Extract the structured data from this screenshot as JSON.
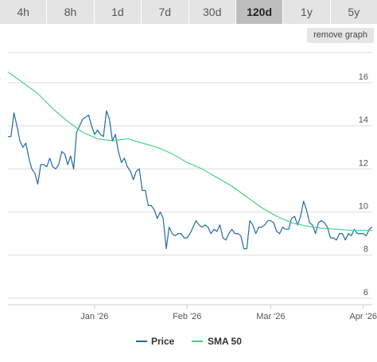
{
  "tabs": [
    {
      "label": "4h",
      "active": false
    },
    {
      "label": "8h",
      "active": false
    },
    {
      "label": "1d",
      "active": false
    },
    {
      "label": "7d",
      "active": false
    },
    {
      "label": "30d",
      "active": false
    },
    {
      "label": "120d",
      "active": true
    },
    {
      "label": "1y",
      "active": false
    },
    {
      "label": "5y",
      "active": false
    }
  ],
  "remove_graph_label": "remove graph",
  "colors": {
    "price": "#1f6aa5",
    "sma": "#3bd17a",
    "grid": "#dddddd"
  },
  "chart_data": {
    "type": "line",
    "title": "",
    "xlabel": "",
    "ylabel": "",
    "ylim": [
      5.7,
      17.4
    ],
    "xlim": [
      "2025-12-03",
      "2026-04-04"
    ],
    "yticks": [
      6,
      8,
      10,
      12,
      14,
      16
    ],
    "xticks": [
      {
        "date": "2026-01-01",
        "label": "Jan '26"
      },
      {
        "date": "2026-02-01",
        "label": "Feb '26"
      },
      {
        "date": "2026-03-01",
        "label": "Mar '26"
      },
      {
        "date": "2026-04-01",
        "label": "Apr '26"
      }
    ],
    "legend": {
      "position": "bottom",
      "entries": [
        "Price",
        "SMA 50"
      ]
    },
    "series": [
      {
        "name": "Price",
        "points": [
          [
            "2025-12-03",
            13.5
          ],
          [
            "2025-12-04",
            13.5
          ],
          [
            "2025-12-05",
            14.6
          ],
          [
            "2025-12-06",
            14.0
          ],
          [
            "2025-12-07",
            13.3
          ],
          [
            "2025-12-08",
            13.0
          ],
          [
            "2025-12-09",
            13.2
          ],
          [
            "2025-12-10",
            12.5
          ],
          [
            "2025-12-11",
            12.0
          ],
          [
            "2025-12-12",
            11.8
          ],
          [
            "2025-12-13",
            11.3
          ],
          [
            "2025-12-14",
            12.2
          ],
          [
            "2025-12-15",
            12.2
          ],
          [
            "2025-12-16",
            12.1
          ],
          [
            "2025-12-17",
            12.5
          ],
          [
            "2025-12-18",
            12.1
          ],
          [
            "2025-12-19",
            12.0
          ],
          [
            "2025-12-20",
            12.2
          ],
          [
            "2025-12-21",
            12.8
          ],
          [
            "2025-12-22",
            12.7
          ],
          [
            "2025-12-23",
            12.2
          ],
          [
            "2025-12-24",
            12.6
          ],
          [
            "2025-12-25",
            12.0
          ],
          [
            "2025-12-26",
            13.7
          ],
          [
            "2025-12-27",
            14.0
          ],
          [
            "2025-12-28",
            14.3
          ],
          [
            "2025-12-29",
            14.4
          ],
          [
            "2025-12-30",
            14.5
          ],
          [
            "2025-12-31",
            14.0
          ],
          [
            "2026-01-01",
            13.6
          ],
          [
            "2026-01-02",
            13.8
          ],
          [
            "2026-01-03",
            13.6
          ],
          [
            "2026-01-04",
            13.5
          ],
          [
            "2026-01-05",
            14.7
          ],
          [
            "2026-01-06",
            14.3
          ],
          [
            "2026-01-07",
            13.3
          ],
          [
            "2026-01-08",
            13.6
          ],
          [
            "2026-01-09",
            12.8
          ],
          [
            "2026-01-10",
            12.3
          ],
          [
            "2026-01-11",
            12.5
          ],
          [
            "2026-01-12",
            12.1
          ],
          [
            "2026-01-13",
            11.9
          ],
          [
            "2026-01-14",
            11.5
          ],
          [
            "2026-01-15",
            11.9
          ],
          [
            "2026-01-16",
            12.0
          ],
          [
            "2026-01-17",
            11.0
          ],
          [
            "2026-01-18",
            11.0
          ],
          [
            "2026-01-19",
            10.3
          ],
          [
            "2026-01-20",
            10.3
          ],
          [
            "2026-01-21",
            10.1
          ],
          [
            "2026-01-22",
            9.7
          ],
          [
            "2026-01-23",
            10.0
          ],
          [
            "2026-01-24",
            9.7
          ],
          [
            "2026-01-25",
            8.3
          ],
          [
            "2026-01-26",
            9.3
          ],
          [
            "2026-01-27",
            9.0
          ],
          [
            "2026-01-28",
            8.9
          ],
          [
            "2026-01-29",
            9.0
          ],
          [
            "2026-01-30",
            9.0
          ],
          [
            "2026-01-31",
            8.8
          ],
          [
            "2026-02-01",
            8.8
          ],
          [
            "2026-02-02",
            9.0
          ],
          [
            "2026-02-03",
            9.3
          ],
          [
            "2026-02-04",
            9.6
          ],
          [
            "2026-02-05",
            9.4
          ],
          [
            "2026-02-06",
            9.3
          ],
          [
            "2026-02-07",
            9.4
          ],
          [
            "2026-02-08",
            9.3
          ],
          [
            "2026-02-09",
            9.0
          ],
          [
            "2026-02-10",
            9.2
          ],
          [
            "2026-02-11",
            9.1
          ],
          [
            "2026-02-12",
            9.4
          ],
          [
            "2026-02-13",
            8.8
          ],
          [
            "2026-02-14",
            8.7
          ],
          [
            "2026-02-15",
            9.0
          ],
          [
            "2026-02-16",
            9.2
          ],
          [
            "2026-02-17",
            9.0
          ],
          [
            "2026-02-18",
            9.0
          ],
          [
            "2026-02-19",
            8.9
          ],
          [
            "2026-02-20",
            8.3
          ],
          [
            "2026-02-21",
            8.3
          ],
          [
            "2026-02-22",
            9.6
          ],
          [
            "2026-02-23",
            9.4
          ],
          [
            "2026-02-24",
            9.0
          ],
          [
            "2026-02-25",
            9.3
          ],
          [
            "2026-02-26",
            9.3
          ],
          [
            "2026-02-27",
            9.4
          ],
          [
            "2026-02-28",
            9.6
          ],
          [
            "2026-03-01",
            9.6
          ],
          [
            "2026-03-02",
            9.5
          ],
          [
            "2026-03-03",
            9.1
          ],
          [
            "2026-03-04",
            9.0
          ],
          [
            "2026-03-05",
            9.3
          ],
          [
            "2026-03-06",
            9.2
          ],
          [
            "2026-03-07",
            9.2
          ],
          [
            "2026-03-08",
            9.7
          ],
          [
            "2026-03-09",
            9.8
          ],
          [
            "2026-03-10",
            9.4
          ],
          [
            "2026-03-11",
            9.8
          ],
          [
            "2026-03-12",
            10.5
          ],
          [
            "2026-03-13",
            10.1
          ],
          [
            "2026-03-14",
            9.5
          ],
          [
            "2026-03-15",
            9.4
          ],
          [
            "2026-03-16",
            9.0
          ],
          [
            "2026-03-17",
            9.5
          ],
          [
            "2026-03-18",
            9.6
          ],
          [
            "2026-03-19",
            9.5
          ],
          [
            "2026-03-20",
            9.3
          ],
          [
            "2026-03-21",
            8.8
          ],
          [
            "2026-03-22",
            8.8
          ],
          [
            "2026-03-23",
            8.7
          ],
          [
            "2026-03-24",
            9.0
          ],
          [
            "2026-03-25",
            9.0
          ],
          [
            "2026-03-26",
            8.7
          ],
          [
            "2026-03-27",
            9.0
          ],
          [
            "2026-03-28",
            8.9
          ],
          [
            "2026-03-29",
            9.2
          ],
          [
            "2026-03-30",
            9.0
          ],
          [
            "2026-03-31",
            9.0
          ],
          [
            "2026-04-01",
            9.0
          ],
          [
            "2026-04-02",
            8.9
          ],
          [
            "2026-04-03",
            9.2
          ],
          [
            "2026-04-04",
            9.3
          ]
        ]
      },
      {
        "name": "SMA 50",
        "points": [
          [
            "2025-12-03",
            16.5
          ],
          [
            "2025-12-08",
            16.0
          ],
          [
            "2025-12-13",
            15.5
          ],
          [
            "2025-12-18",
            14.8
          ],
          [
            "2025-12-23",
            14.2
          ],
          [
            "2025-12-28",
            13.7
          ],
          [
            "2026-01-02",
            13.4
          ],
          [
            "2026-01-07",
            13.3
          ],
          [
            "2026-01-12",
            13.4
          ],
          [
            "2026-01-17",
            13.2
          ],
          [
            "2026-01-22",
            13.0
          ],
          [
            "2026-01-27",
            12.7
          ],
          [
            "2026-02-01",
            12.3
          ],
          [
            "2026-02-06",
            12.0
          ],
          [
            "2026-02-11",
            11.6
          ],
          [
            "2026-02-16",
            11.2
          ],
          [
            "2026-02-21",
            10.7
          ],
          [
            "2026-02-26",
            10.2
          ],
          [
            "2026-03-03",
            9.8
          ],
          [
            "2026-03-08",
            9.5
          ],
          [
            "2026-03-13",
            9.35
          ],
          [
            "2026-03-18",
            9.25
          ],
          [
            "2026-03-23",
            9.2
          ],
          [
            "2026-03-28",
            9.15
          ],
          [
            "2026-04-04",
            9.15
          ]
        ]
      }
    ]
  }
}
